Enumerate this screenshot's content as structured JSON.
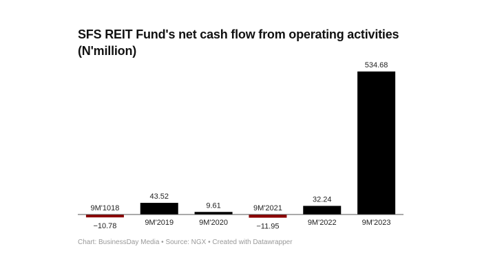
{
  "chart_data": {
    "type": "bar",
    "title": "SFS REIT Fund's net cash flow from operating activities (N'million)",
    "categories": [
      "9M'1018",
      "9M'2019",
      "9M'2020",
      "9M'2021",
      "9M'2022",
      "9M'2023"
    ],
    "values": [
      -10.78,
      43.52,
      9.61,
      -11.95,
      32.24,
      534.68
    ],
    "value_labels": [
      "−10.78",
      "43.52",
      "9.61",
      "−11.95",
      "32.24",
      "534.68"
    ],
    "colors": {
      "positive": "#000000",
      "negative": "#8b0000"
    },
    "grid": false,
    "ylim": [
      -11.95,
      534.68
    ]
  },
  "footer": "Chart: BusinessDay Media • Source: NGX • Created with Datawrapper"
}
